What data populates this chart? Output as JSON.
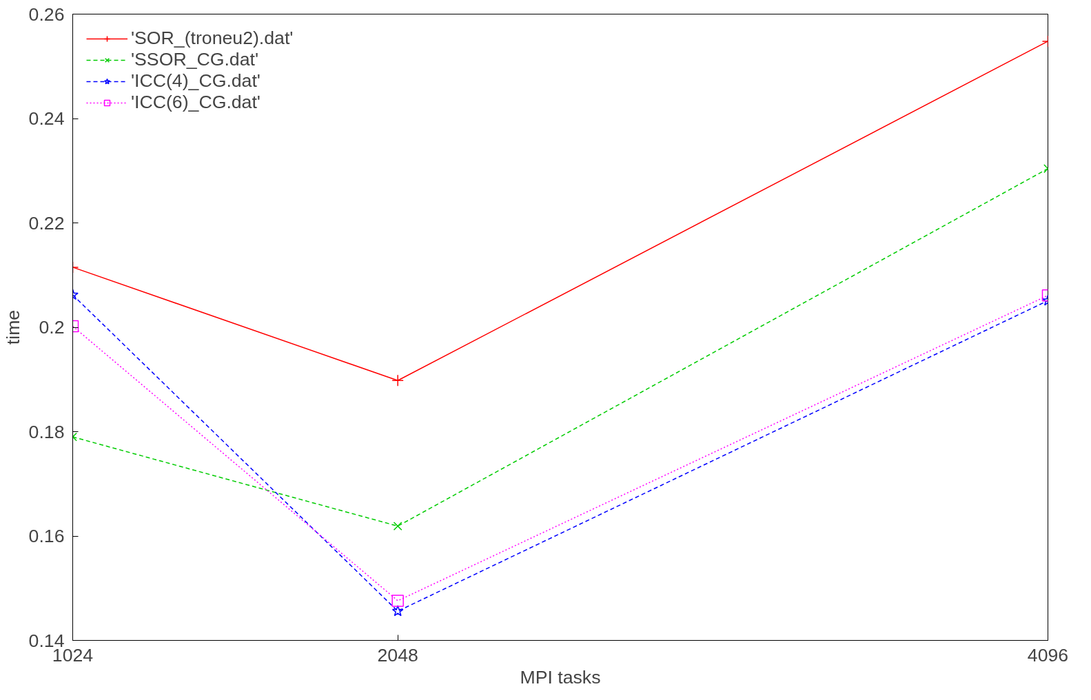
{
  "chart_data": {
    "type": "line",
    "xlabel": "MPI tasks",
    "ylabel": "time",
    "x": [
      1024,
      2048,
      4096
    ],
    "xlim": [
      1024,
      4096
    ],
    "xticks": [
      1024,
      2048,
      4096
    ],
    "ylim": [
      0.14,
      0.26
    ],
    "yticks": [
      0.14,
      0.16,
      0.18,
      {
        "value": 0.2,
        "label": "0.2"
      },
      0.22,
      0.24,
      0.26
    ],
    "grid": false,
    "legend": "top left",
    "series": [
      {
        "name": "'SOR_(troneu2).dat'",
        "color": "#ff0000",
        "values": [
          0.2115,
          0.1898,
          0.2548
        ],
        "marker": "cross",
        "line_style": "solid"
      },
      {
        "name": "'SSOR_CG.dat'",
        "color": "#00cc00",
        "values": [
          0.179,
          0.1619,
          0.2304
        ],
        "marker": "x",
        "line_style": "dashed"
      },
      {
        "name": "'ICC(4)_CG.dat'",
        "color": "#0000ff",
        "values": [
          0.2062,
          0.1456,
          0.2051
        ],
        "marker": "star",
        "line_style": "dashed"
      },
      {
        "name": "'ICC(6)_CG.dat'",
        "color": "#ff00ff",
        "values": [
          0.2002,
          0.1476,
          0.2061
        ],
        "marker": "square",
        "line_style": "dotted"
      }
    ]
  }
}
